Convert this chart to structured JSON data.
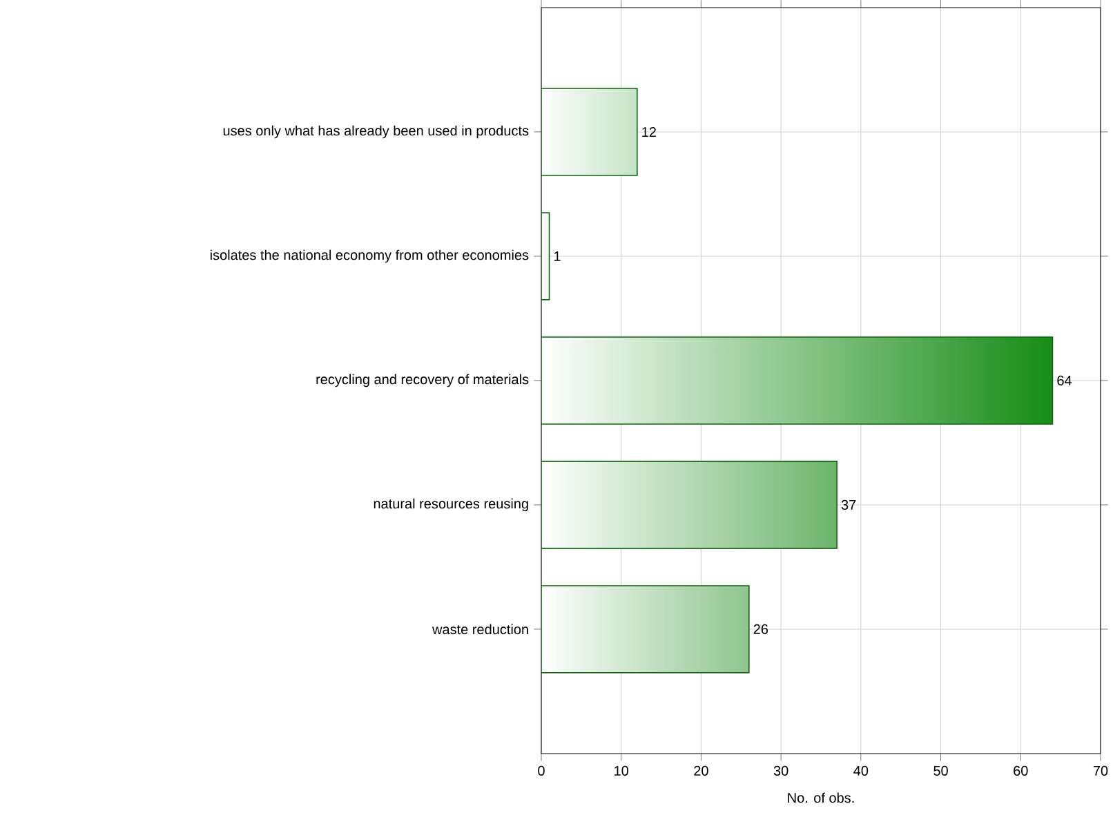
{
  "chart_data": {
    "type": "bar",
    "orientation": "horizontal",
    "xlabel": "No. of obs.",
    "categories": [
      "uses only what has already been used in products",
      "isolates the national economy from other economies",
      "recycling and recovery of materials",
      "natural resources reusing",
      "waste reduction"
    ],
    "values": [
      12,
      1,
      64,
      37,
      26
    ],
    "colors": [
      "#c6e3c6",
      "#eef7ee",
      "#168c16",
      "#6cb46c",
      "#8fc68f"
    ],
    "xlim": [
      0,
      70
    ],
    "xticks": [
      0,
      10,
      20,
      30,
      40,
      50,
      60,
      70
    ],
    "grid": true,
    "data_labels": true
  }
}
